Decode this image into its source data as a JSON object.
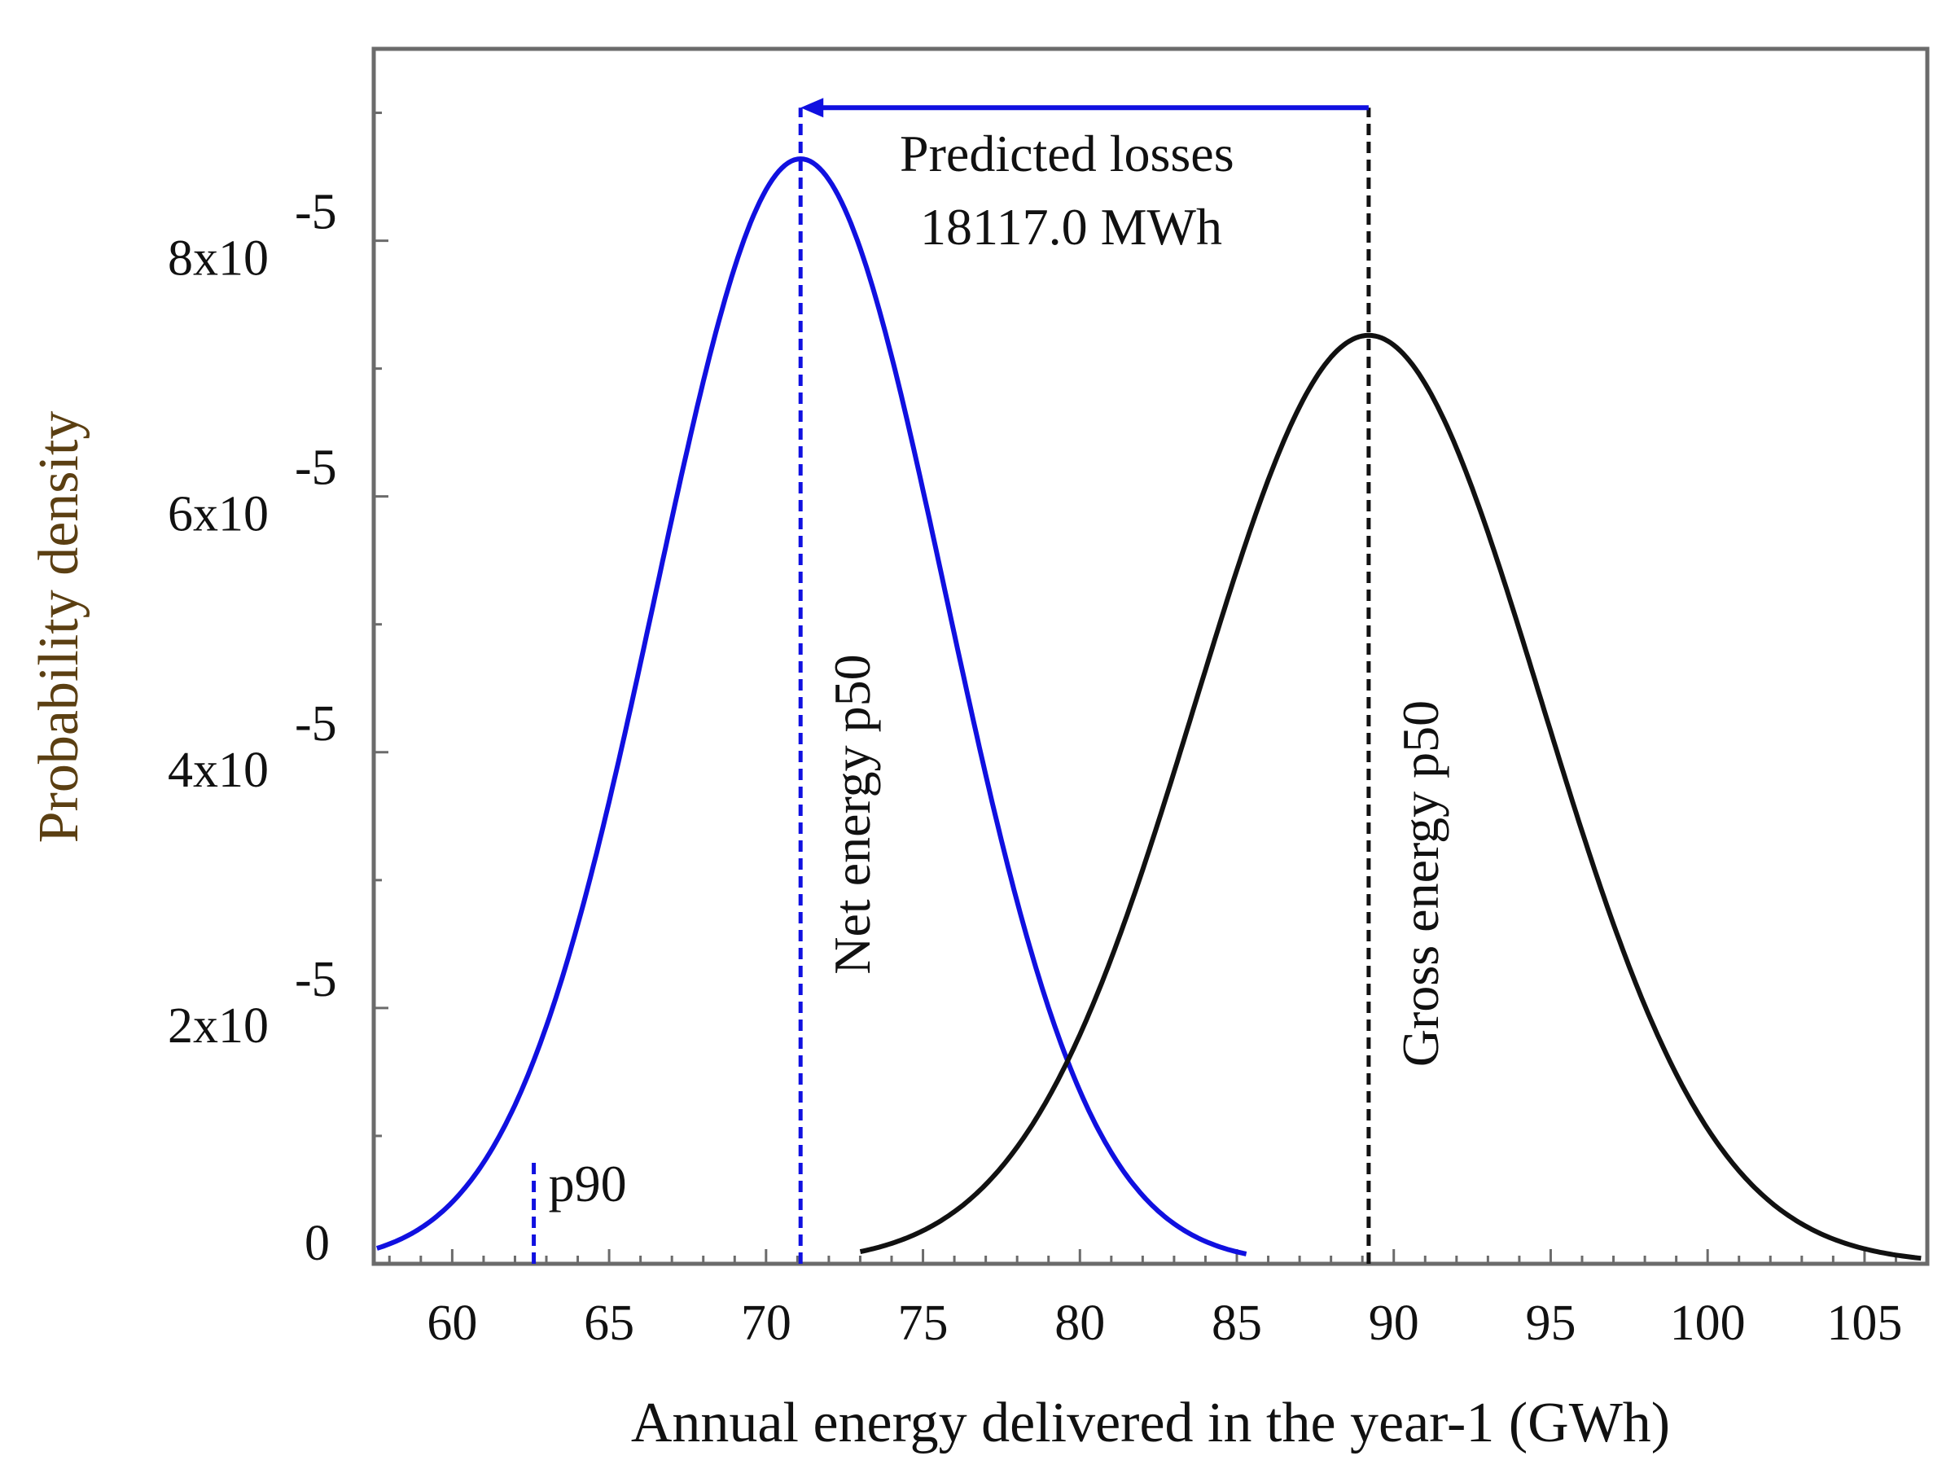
{
  "chart_data": {
    "type": "line",
    "title": "",
    "xlabel": "Annual energy delivered in the year-1 (GWh)",
    "ylabel": "Probability density",
    "xlim": [
      57.5,
      107
    ],
    "ylim": [
      0,
      9.5e-05
    ],
    "x_ticks": [
      60,
      65,
      70,
      75,
      80,
      85,
      90,
      95,
      100,
      105
    ],
    "x_tick_labels": [
      "60",
      "65",
      "70",
      "75",
      "80",
      "85",
      "90",
      "95",
      "100",
      "105"
    ],
    "y_ticks": [
      {
        "value": 0,
        "label": "0",
        "exponent": ""
      },
      {
        "value": 2e-05,
        "label": "2x10",
        "exponent": "-5"
      },
      {
        "value": 4e-05,
        "label": "4x10",
        "exponent": "-5"
      },
      {
        "value": 6e-05,
        "label": "6x10",
        "exponent": "-5"
      },
      {
        "value": 8e-05,
        "label": "8x10",
        "exponent": "-5"
      }
    ],
    "series": [
      {
        "name": "Net energy",
        "color": "#1010e0",
        "mean": 71.1,
        "sd": 4.62,
        "peak": 8.64e-05,
        "x_range": [
          57.6,
          85.3
        ]
      },
      {
        "name": "Gross energy",
        "color": "#111111",
        "mean": 89.2,
        "sd": 5.5,
        "peak": 7.26e-05,
        "x_range": [
          73.0,
          106.8
        ]
      }
    ],
    "markers": [
      {
        "name": "p90",
        "label": "p90",
        "x": 62.6,
        "y_top": 8.2e-06,
        "color": "#1010e0"
      },
      {
        "name": "net-p50",
        "label": "Net energy p50",
        "x": 71.1,
        "y_top": 9.04e-05,
        "color": "#1010e0"
      },
      {
        "name": "gross-p50",
        "label": "Gross energy p50",
        "x": 89.2,
        "y_top": 9.04e-05,
        "color": "#111111"
      }
    ],
    "annotations": {
      "losses_line1": "Predicted losses",
      "losses_line2": "18117.0 MWh",
      "arrow_color": "#1010e0"
    }
  }
}
